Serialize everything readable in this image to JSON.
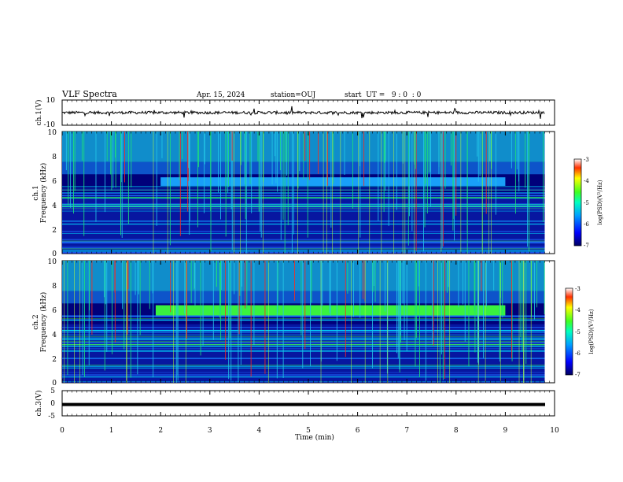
{
  "header": {
    "title": "VLF Spectra",
    "date": "Apr. 15, 2024",
    "station": "station=OUJ",
    "start_ut": "start  UT =   9 : 0  : 0"
  },
  "colors": {
    "background": "#00007a",
    "noise_band": "#1e6bff",
    "green": "#1ee27a",
    "bright_green": "#3cff3c",
    "red": "#ff2a1a",
    "trace": "#000000"
  },
  "chart_data": [
    {
      "type": "line",
      "name": "ch1-waveform",
      "ylabel": "ch.1(V)",
      "ylim": [
        -10,
        10
      ],
      "yticks": [
        "10",
        "-10"
      ],
      "baseline": 0,
      "description_values": {
        "x_range_min": [
          0,
          9.8
        ]
      }
    },
    {
      "type": "heatmap",
      "name": "ch1-spectrogram",
      "ylabel_line1": "ch.1",
      "ylabel_line2": "Frequency (kHz)",
      "ylim": [
        0,
        10
      ],
      "yticks": [
        "0",
        "2",
        "4",
        "6",
        "8",
        "10"
      ],
      "x_range_min": [
        0,
        9.8
      ],
      "band_center_khz": 5.9,
      "band_start_min": 2.0,
      "band_end_min": 9.0,
      "colorbar": {
        "label": "log(PSD)(V²/Hz)",
        "range": [
          -7,
          -3
        ],
        "ticks": [
          "-3",
          "-4",
          "-5",
          "-6",
          "-7"
        ]
      }
    },
    {
      "type": "heatmap",
      "name": "ch2-spectrogram",
      "ylabel_line1": "ch.2",
      "ylabel_line2": "Frequency (kHz)",
      "ylim": [
        0,
        10
      ],
      "yticks": [
        "0",
        "2",
        "4",
        "6",
        "8",
        "10"
      ],
      "x_range_min": [
        0,
        9.8
      ],
      "band_center_khz": 5.9,
      "band_start_min": 1.9,
      "band_end_min": 9.0,
      "colorbar": {
        "label": "log(PSD)(V²/Hz)",
        "range": [
          -7,
          -3
        ],
        "ticks": [
          "-3",
          "-4",
          "-5",
          "-6",
          "-7"
        ]
      }
    },
    {
      "type": "line",
      "name": "ch3-waveform",
      "ylabel": "ch.3(V)",
      "ylim": [
        -5,
        5
      ],
      "yticks": [
        "5",
        "0",
        "-5"
      ],
      "baseline": -0.5,
      "x_range_min": [
        0,
        10
      ]
    }
  ],
  "xaxis": {
    "label": "Time (min)",
    "range": [
      0,
      10
    ],
    "ticks": [
      "0",
      "1",
      "2",
      "3",
      "4",
      "5",
      "6",
      "7",
      "8",
      "9",
      "10"
    ]
  }
}
